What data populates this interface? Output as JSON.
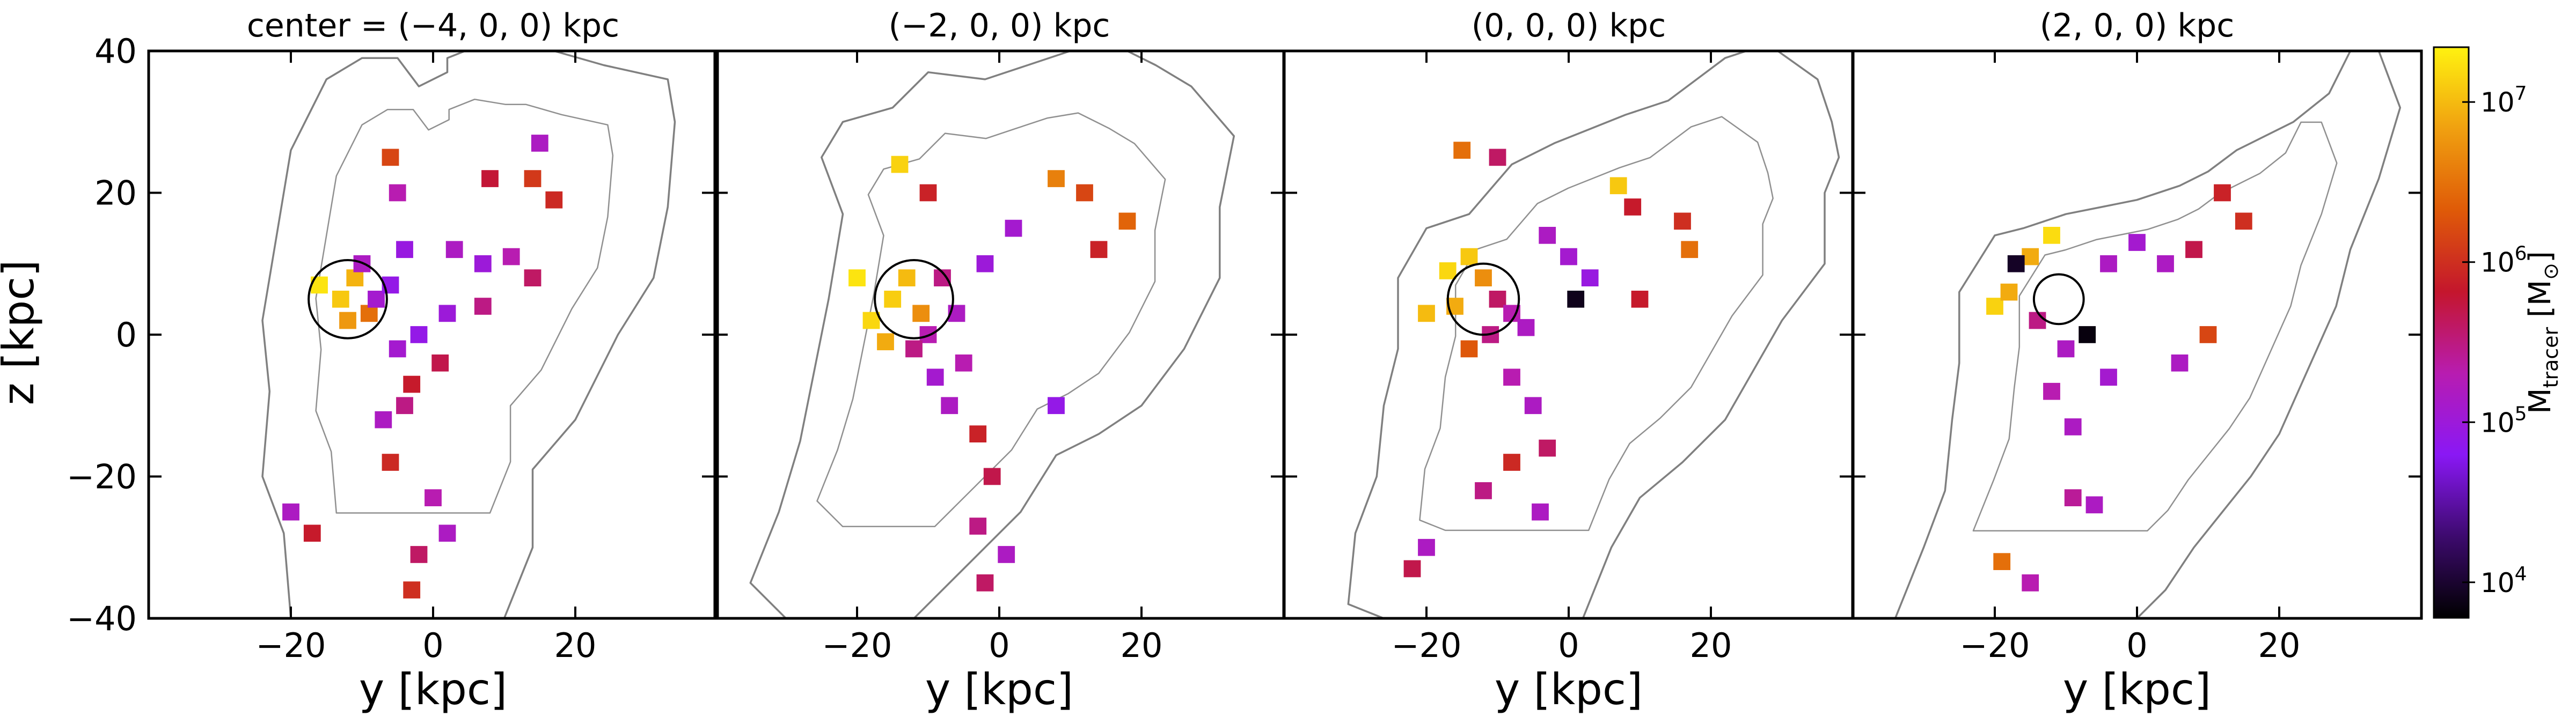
{
  "figure": {
    "type": "multi-panel projection map",
    "ylabel": "z [kpc]",
    "xlabel": "y [kpc]",
    "colorbar": {
      "label_main": "M",
      "label_sub": "tracer",
      "label_unit_open": " [M",
      "label_unit_sub": "⊙",
      "label_unit_close": "]",
      "scale": "log",
      "range": [
        6000,
        22000000
      ],
      "ticks": [
        {
          "value": 10000,
          "base": "10",
          "exp": "4"
        },
        {
          "value": 100000,
          "base": "10",
          "exp": "5"
        },
        {
          "value": 1000000,
          "base": "10",
          "exp": "6"
        },
        {
          "value": 10000000,
          "base": "10",
          "exp": "7"
        }
      ],
      "colormap": [
        "#000000",
        "#3d0a6e",
        "#8a18f5",
        "#b81cb0",
        "#c4162d",
        "#df5a08",
        "#f0a010",
        "#fff210"
      ]
    }
  },
  "chart_data": [
    {
      "type": "heatmap",
      "title": "center = (−4, 0, 0) kpc",
      "xlim": [
        -40,
        40
      ],
      "ylim": [
        -40,
        40
      ],
      "xticks": [
        -20,
        0,
        20
      ],
      "xtick_labels": [
        "−20",
        "0",
        "20"
      ],
      "yticks": [
        -40,
        -20,
        0,
        20,
        40
      ],
      "ytick_labels": [
        "−40",
        "−20",
        "0",
        "20",
        "40"
      ],
      "circle": {
        "y": -12,
        "z": 5,
        "r": 5.5
      },
      "outer_contour": [
        [
          -15,
          36
        ],
        [
          -10,
          39
        ],
        [
          -5,
          39
        ],
        [
          -2,
          35
        ],
        [
          2,
          37
        ],
        [
          2,
          39
        ],
        [
          7,
          41
        ],
        [
          13,
          40
        ],
        [
          17,
          40
        ],
        [
          24,
          38
        ],
        [
          33,
          36
        ],
        [
          34,
          30
        ],
        [
          33,
          18
        ],
        [
          31,
          8
        ],
        [
          26,
          0
        ],
        [
          20,
          -12
        ],
        [
          14,
          -19
        ],
        [
          14,
          -30
        ],
        [
          10,
          -40
        ],
        [
          -20,
          -40
        ],
        [
          -21,
          -28
        ],
        [
          -24,
          -20
        ],
        [
          -23,
          -8
        ],
        [
          -24,
          2
        ],
        [
          -22,
          14
        ],
        [
          -20,
          26
        ],
        [
          -17,
          32
        ]
      ],
      "cells": [
        {
          "y": -13,
          "z": 5,
          "m": 12000000
        },
        {
          "y": -11,
          "z": 8,
          "m": 9000000
        },
        {
          "y": -16,
          "z": 7,
          "m": 18000000
        },
        {
          "y": -12,
          "z": 2,
          "m": 6000000
        },
        {
          "y": -9,
          "z": 3,
          "m": 3000000
        },
        {
          "y": -10,
          "z": 10,
          "m": 150000
        },
        {
          "y": -8,
          "z": 5,
          "m": 120000
        },
        {
          "y": -6,
          "z": 7,
          "m": 80000
        },
        {
          "y": -4,
          "z": 12,
          "m": 90000
        },
        {
          "y": -3,
          "z": -7,
          "m": 700000
        },
        {
          "y": -6,
          "z": 25,
          "m": 1500000
        },
        {
          "y": -5,
          "z": 20,
          "m": 200000
        },
        {
          "y": 8,
          "z": 22,
          "m": 600000
        },
        {
          "y": 14,
          "z": 22,
          "m": 1200000
        },
        {
          "y": 17,
          "z": 19,
          "m": 900000
        },
        {
          "y": 15,
          "z": 27,
          "m": 150000
        },
        {
          "y": 3,
          "z": 12,
          "m": 150000
        },
        {
          "y": 7,
          "z": 10,
          "m": 100000
        },
        {
          "y": 11,
          "z": 11,
          "m": 200000
        },
        {
          "y": 14,
          "z": 8,
          "m": 400000
        },
        {
          "y": 7,
          "z": 4,
          "m": 300000
        },
        {
          "y": 2,
          "z": 3,
          "m": 100000
        },
        {
          "y": 1,
          "z": -4,
          "m": 500000
        },
        {
          "y": -7,
          "z": -12,
          "m": 150000
        },
        {
          "y": -6,
          "z": -18,
          "m": 900000
        },
        {
          "y": 0,
          "z": -23,
          "m": 200000
        },
        {
          "y": 2,
          "z": -28,
          "m": 150000
        },
        {
          "y": -2,
          "z": -31,
          "m": 400000
        },
        {
          "y": -3,
          "z": -36,
          "m": 1000000
        },
        {
          "y": -17,
          "z": -28,
          "m": 700000
        },
        {
          "y": -20,
          "z": -25,
          "m": 150000
        },
        {
          "y": -5,
          "z": -2,
          "m": 120000
        },
        {
          "y": -2,
          "z": 0,
          "m": 80000
        },
        {
          "y": -4,
          "z": -10,
          "m": 300000
        }
      ]
    },
    {
      "type": "heatmap",
      "title": "(−2, 0, 0) kpc",
      "xlim": [
        -40,
        40
      ],
      "ylim": [
        -40,
        40
      ],
      "xticks": [
        -20,
        0,
        20
      ],
      "xtick_labels": [
        "−20",
        "0",
        "20"
      ],
      "circle": {
        "y": -12,
        "z": 5,
        "r": 5.5
      },
      "outer_contour": [
        [
          -22,
          30
        ],
        [
          -15,
          32
        ],
        [
          -10,
          37
        ],
        [
          -2,
          36
        ],
        [
          4,
          38
        ],
        [
          10,
          40
        ],
        [
          16,
          41
        ],
        [
          22,
          38
        ],
        [
          27,
          35
        ],
        [
          33,
          28
        ],
        [
          31,
          18
        ],
        [
          31,
          8
        ],
        [
          26,
          -2
        ],
        [
          20,
          -10
        ],
        [
          14,
          -14
        ],
        [
          8,
          -17
        ],
        [
          3,
          -25
        ],
        [
          -4,
          -32
        ],
        [
          -12,
          -40
        ],
        [
          -30,
          -40
        ],
        [
          -35,
          -35
        ],
        [
          -31,
          -25
        ],
        [
          -28,
          -15
        ],
        [
          -26,
          -5
        ],
        [
          -24,
          5
        ],
        [
          -22,
          17
        ],
        [
          -25,
          25
        ]
      ],
      "cells": [
        {
          "y": -15,
          "z": 5,
          "m": 13000000
        },
        {
          "y": -13,
          "z": 8,
          "m": 10000000
        },
        {
          "y": -18,
          "z": 2,
          "m": 15000000
        },
        {
          "y": -16,
          "z": -1,
          "m": 8000000
        },
        {
          "y": -11,
          "z": 3,
          "m": 5000000
        },
        {
          "y": -20,
          "z": 8,
          "m": 18000000
        },
        {
          "y": -8,
          "z": 8,
          "m": 300000
        },
        {
          "y": -10,
          "z": 0,
          "m": 200000
        },
        {
          "y": -6,
          "z": 3,
          "m": 150000
        },
        {
          "y": -14,
          "z": 24,
          "m": 14000000
        },
        {
          "y": -10,
          "z": 20,
          "m": 800000
        },
        {
          "y": 8,
          "z": 22,
          "m": 4000000
        },
        {
          "y": 12,
          "z": 20,
          "m": 1500000
        },
        {
          "y": 18,
          "z": 16,
          "m": 2500000
        },
        {
          "y": 14,
          "z": 12,
          "m": 800000
        },
        {
          "y": 2,
          "z": 15,
          "m": 120000
        },
        {
          "y": -2,
          "z": 10,
          "m": 100000
        },
        {
          "y": -5,
          "z": -4,
          "m": 200000
        },
        {
          "y": -7,
          "z": -10,
          "m": 150000
        },
        {
          "y": -3,
          "z": -14,
          "m": 800000
        },
        {
          "y": -1,
          "z": -20,
          "m": 500000
        },
        {
          "y": -3,
          "z": -27,
          "m": 300000
        },
        {
          "y": 1,
          "z": -31,
          "m": 150000
        },
        {
          "y": -2,
          "z": -35,
          "m": 400000
        },
        {
          "y": 8,
          "z": -10,
          "m": 80000
        },
        {
          "y": -9,
          "z": -6,
          "m": 120000
        },
        {
          "y": -12,
          "z": -2,
          "m": 300000
        }
      ]
    },
    {
      "type": "heatmap",
      "title": "(0, 0, 0) kpc",
      "xlim": [
        -40,
        40
      ],
      "ylim": [
        -40,
        40
      ],
      "xticks": [
        -20,
        0,
        20
      ],
      "xtick_labels": [
        "−20",
        "0",
        "20"
      ],
      "circle": {
        "y": -12,
        "z": 5,
        "r": 5
      },
      "outer_contour": [
        [
          -20,
          15
        ],
        [
          -14,
          17
        ],
        [
          -8,
          24
        ],
        [
          -2,
          27
        ],
        [
          3,
          29
        ],
        [
          8,
          31
        ],
        [
          14,
          33
        ],
        [
          22,
          39
        ],
        [
          28,
          41
        ],
        [
          35,
          36
        ],
        [
          37,
          30
        ],
        [
          38,
          25
        ],
        [
          36,
          20
        ],
        [
          36,
          10
        ],
        [
          30,
          2
        ],
        [
          26,
          -5
        ],
        [
          22,
          -12
        ],
        [
          16,
          -18
        ],
        [
          10,
          -23
        ],
        [
          6,
          -30
        ],
        [
          2,
          -40
        ],
        [
          -26,
          -40
        ],
        [
          -31,
          -38
        ],
        [
          -30,
          -28
        ],
        [
          -27,
          -20
        ],
        [
          -26,
          -10
        ],
        [
          -24,
          -2
        ],
        [
          -24,
          8
        ]
      ],
      "cells": [
        {
          "y": -17,
          "z": 9,
          "m": 15000000
        },
        {
          "y": -14,
          "z": 11,
          "m": 12000000
        },
        {
          "y": -20,
          "z": 3,
          "m": 10000000
        },
        {
          "y": -16,
          "z": 4,
          "m": 8000000
        },
        {
          "y": -12,
          "z": 8,
          "m": 5000000
        },
        {
          "y": -10,
          "z": 5,
          "m": 400000
        },
        {
          "y": -8,
          "z": 3,
          "m": 200000
        },
        {
          "y": -11,
          "z": 0,
          "m": 300000
        },
        {
          "y": -14,
          "z": -2,
          "m": 2000000
        },
        {
          "y": -15,
          "z": 26,
          "m": 3000000
        },
        {
          "y": -10,
          "z": 25,
          "m": 400000
        },
        {
          "y": 7,
          "z": 21,
          "m": 12000000
        },
        {
          "y": 9,
          "z": 18,
          "m": 700000
        },
        {
          "y": 16,
          "z": 16,
          "m": 1000000
        },
        {
          "y": 17,
          "z": 12,
          "m": 3000000
        },
        {
          "y": -3,
          "z": 14,
          "m": 150000
        },
        {
          "y": 0,
          "z": 11,
          "m": 120000
        },
        {
          "y": 3,
          "z": 8,
          "m": 90000
        },
        {
          "y": 1,
          "z": 5,
          "m": 8000
        },
        {
          "y": -8,
          "z": -6,
          "m": 200000
        },
        {
          "y": -5,
          "z": -10,
          "m": 150000
        },
        {
          "y": -3,
          "z": -16,
          "m": 400000
        },
        {
          "y": -8,
          "z": -18,
          "m": 900000
        },
        {
          "y": -12,
          "z": -22,
          "m": 300000
        },
        {
          "y": -4,
          "z": -25,
          "m": 150000
        },
        {
          "y": -20,
          "z": -30,
          "m": 150000
        },
        {
          "y": -22,
          "z": -33,
          "m": 500000
        },
        {
          "y": 10,
          "z": 5,
          "m": 700000
        },
        {
          "y": -6,
          "z": 1,
          "m": 150000
        }
      ]
    },
    {
      "type": "heatmap",
      "title": "(2, 0, 0) kpc",
      "xlim": [
        -40,
        40
      ],
      "ylim": [
        -40,
        40
      ],
      "xticks": [
        -20,
        0,
        20
      ],
      "xtick_labels": [
        "−20",
        "0",
        "20"
      ],
      "circle": {
        "y": -11,
        "z": 5,
        "r": 3.5
      },
      "outer_contour": [
        [
          -20,
          14
        ],
        [
          -16,
          15
        ],
        [
          -10,
          17
        ],
        [
          -5,
          18
        ],
        [
          0,
          19
        ],
        [
          6,
          21
        ],
        [
          10,
          23
        ],
        [
          14,
          26
        ],
        [
          18,
          28
        ],
        [
          22,
          30
        ],
        [
          27,
          34
        ],
        [
          30,
          40
        ],
        [
          34,
          40
        ],
        [
          37,
          32
        ],
        [
          34,
          22
        ],
        [
          30,
          12
        ],
        [
          28,
          4
        ],
        [
          24,
          -5
        ],
        [
          20,
          -14
        ],
        [
          16,
          -20
        ],
        [
          12,
          -25
        ],
        [
          8,
          -30
        ],
        [
          4,
          -36
        ],
        [
          0,
          -40
        ],
        [
          -34,
          -40
        ],
        [
          -30,
          -30
        ],
        [
          -27,
          -22
        ],
        [
          -26,
          -12
        ],
        [
          -25,
          -4
        ],
        [
          -25,
          6
        ]
      ],
      "cells": [
        {
          "y": -12,
          "z": 14,
          "m": 16000000
        },
        {
          "y": -15,
          "z": 11,
          "m": 8000000
        },
        {
          "y": -20,
          "z": 4,
          "m": 14000000
        },
        {
          "y": -18,
          "z": 6,
          "m": 8000000
        },
        {
          "y": -14,
          "z": 2,
          "m": 300000
        },
        {
          "y": -10,
          "z": -2,
          "m": 150000
        },
        {
          "y": -7,
          "z": 0,
          "m": 7000
        },
        {
          "y": -4,
          "z": 10,
          "m": 150000
        },
        {
          "y": 0,
          "z": 13,
          "m": 120000
        },
        {
          "y": 4,
          "z": 10,
          "m": 150000
        },
        {
          "y": 12,
          "z": 20,
          "m": 800000
        },
        {
          "y": 15,
          "z": 16,
          "m": 1000000
        },
        {
          "y": 8,
          "z": 12,
          "m": 500000
        },
        {
          "y": -12,
          "z": -8,
          "m": 200000
        },
        {
          "y": -9,
          "z": -13,
          "m": 150000
        },
        {
          "y": -9,
          "z": -23,
          "m": 250000
        },
        {
          "y": -6,
          "z": -24,
          "m": 150000
        },
        {
          "y": -19,
          "z": -32,
          "m": 3000000
        },
        {
          "y": -15,
          "z": -35,
          "m": 200000
        },
        {
          "y": 10,
          "z": 0,
          "m": 1500000
        },
        {
          "y": 6,
          "z": -4,
          "m": 150000
        },
        {
          "y": -4,
          "z": -6,
          "m": 120000
        },
        {
          "y": -17,
          "z": 10,
          "m": 9000
        }
      ]
    }
  ]
}
